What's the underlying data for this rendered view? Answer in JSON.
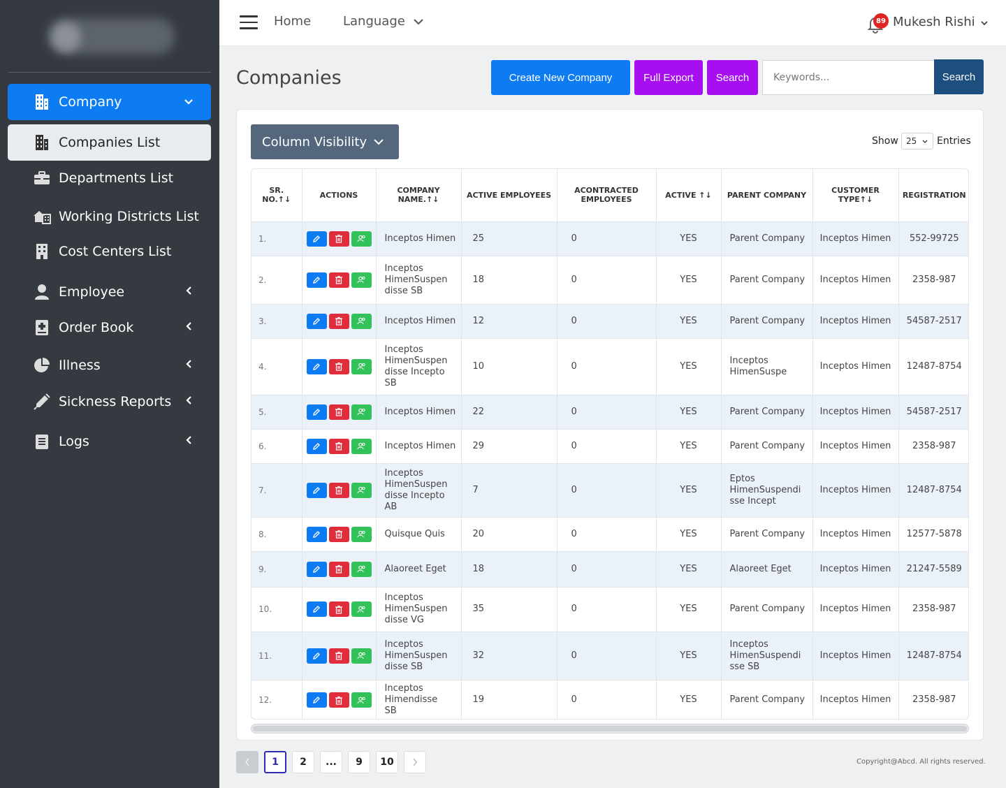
{
  "topbar": {
    "home": "Home",
    "language": "Language",
    "notification_count": "89",
    "user_name": "Mukesh Rishi"
  },
  "sidebar": {
    "items": [
      {
        "label": "Company",
        "icon": "building-icon",
        "chevron": "down"
      },
      {
        "label": "Companies List",
        "icon": "buildings-icon"
      },
      {
        "label": "Departments List",
        "icon": "briefcase-icon"
      },
      {
        "label": "Working Districts List",
        "icon": "house-buildings-icon"
      },
      {
        "label": "Cost Centers List",
        "icon": "office-building-icon"
      },
      {
        "label": "Employee",
        "icon": "user-icon",
        "chevron": "left"
      },
      {
        "label": "Order Book",
        "icon": "plus-book-icon",
        "chevron": "left"
      },
      {
        "label": "Illness",
        "icon": "pie-chart-icon",
        "chevron": "left"
      },
      {
        "label": "Sickness Reports",
        "icon": "syringe-icon",
        "chevron": "left"
      },
      {
        "label": "Logs",
        "icon": "notepad-icon",
        "chevron": "left"
      }
    ]
  },
  "page": {
    "title": "Companies",
    "create_btn": "Create New Company",
    "export_btn": "Full Export",
    "search_btn": "Search",
    "keywords_placeholder": "Keywords...",
    "search_submit": "Search",
    "column_visibility": "Column Visibility",
    "show_label": "Show",
    "entries_value": "25",
    "entries_label": "Entries"
  },
  "colors": {
    "primary": "#0d7cf2",
    "purple": "#a70ef0",
    "navy": "#1d4e80",
    "danger": "#e02d3c",
    "success": "#33c25a",
    "sidebar_bg": "#343a40"
  },
  "table": {
    "headers": [
      "SR. NO.↑↓",
      "ACTIONS",
      "COMPANY NAME.↑↓",
      "ACTIVE EMPLOYEES",
      "ACONTRACTED EMPLOYEES",
      "ACTIVE ↑↓",
      "PARENT COMPANY",
      "CUSTOMER TYPE↑↓",
      "REGISTRATION"
    ],
    "rows": [
      {
        "sr": "1.",
        "name": [
          "Inceptos Himen"
        ],
        "active_emp": "25",
        "contracted": "0",
        "active": "YES",
        "parent": [
          "Parent Company"
        ],
        "customer": "Inceptos Himen",
        "reg": "552-99725"
      },
      {
        "sr": "2.",
        "name": [
          "Inceptos",
          "HimenSuspen",
          "disse SB"
        ],
        "active_emp": "18",
        "contracted": "0",
        "active": "YES",
        "parent": [
          "Parent Company"
        ],
        "customer": "Inceptos Himen",
        "reg": "2358-987"
      },
      {
        "sr": "3.",
        "name": [
          "Inceptos Himen"
        ],
        "active_emp": "12",
        "contracted": "0",
        "active": "YES",
        "parent": [
          "Parent Company"
        ],
        "customer": "Inceptos Himen",
        "reg": "54587-2517"
      },
      {
        "sr": "4.",
        "name": [
          "Inceptos",
          "HimenSuspen",
          "disse Incepto",
          "SB"
        ],
        "active_emp": "10",
        "contracted": "0",
        "active": "YES",
        "parent": [
          "Inceptos",
          "HimenSuspe"
        ],
        "customer": "Inceptos Himen",
        "reg": "12487-8754"
      },
      {
        "sr": "5.",
        "name": [
          "Inceptos Himen"
        ],
        "active_emp": "22",
        "contracted": "0",
        "active": "YES",
        "parent": [
          "Parent Company"
        ],
        "customer": "Inceptos Himen",
        "reg": "54587-2517"
      },
      {
        "sr": "6.",
        "name": [
          "Inceptos Himen"
        ],
        "active_emp": "29",
        "contracted": "0",
        "active": "YES",
        "parent": [
          "Parent Company"
        ],
        "customer": "Inceptos Himen",
        "reg": "2358-987"
      },
      {
        "sr": "7.",
        "name": [
          "Inceptos",
          "HimenSuspen",
          "disse Incepto",
          "AB"
        ],
        "active_emp": "7",
        "contracted": "0",
        "active": "YES",
        "parent": [
          "Eptos",
          "HimenSuspendi",
          "sse Incept"
        ],
        "customer": "Inceptos Himen",
        "reg": "12487-8754"
      },
      {
        "sr": "8.",
        "name": [
          "Quisque Quis"
        ],
        "active_emp": "20",
        "contracted": "0",
        "active": "YES",
        "parent": [
          "Parent Company"
        ],
        "customer": "Inceptos Himen",
        "reg": "12577-5878"
      },
      {
        "sr": "9.",
        "name": [
          "Alaoreet Eget"
        ],
        "active_emp": "18",
        "contracted": "0",
        "active": "YES",
        "parent": [
          "Alaoreet Eget"
        ],
        "customer": "Inceptos Himen",
        "reg": "21247-5589"
      },
      {
        "sr": "10.",
        "name": [
          "Inceptos",
          "HimenSuspen",
          "disse VG"
        ],
        "active_emp": "35",
        "contracted": "0",
        "active": "YES",
        "parent": [
          "Parent Company"
        ],
        "customer": "Inceptos Himen",
        "reg": "2358-987"
      },
      {
        "sr": "11.",
        "name": [
          "Inceptos",
          "HimenSuspen",
          "disse SB"
        ],
        "active_emp": "32",
        "contracted": "0",
        "active": "YES",
        "parent": [
          "Inceptos",
          "HimenSuspendi",
          "sse SB"
        ],
        "customer": "Inceptos Himen",
        "reg": "12487-8754"
      },
      {
        "sr": "12.",
        "name": [
          "Inceptos",
          "Himendisse",
          "SB"
        ],
        "active_emp": "19",
        "contracted": "0",
        "active": "YES",
        "parent": [
          "Parent Company"
        ],
        "customer": "Inceptos Himen",
        "reg": "2358-987"
      }
    ]
  },
  "pagination": {
    "pages": [
      "1",
      "2",
      "...",
      "9",
      "10"
    ],
    "current": "1"
  },
  "footer": {
    "copyright": "Copyright@Abcd. All rights reserved."
  }
}
